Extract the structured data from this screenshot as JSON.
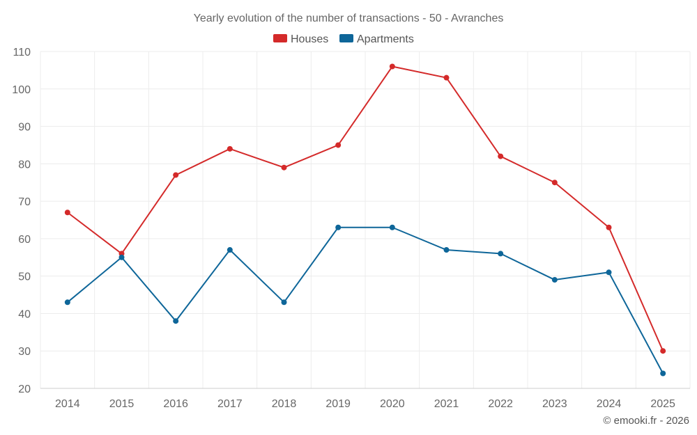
{
  "chart_data": {
    "type": "line",
    "title": "Yearly evolution of the number of transactions - 50 - Avranches",
    "categories": [
      "2014",
      "2015",
      "2016",
      "2017",
      "2018",
      "2019",
      "2020",
      "2021",
      "2022",
      "2023",
      "2024",
      "2025"
    ],
    "series": [
      {
        "name": "Houses",
        "color": "#d42a2a",
        "values": [
          67,
          56,
          77,
          84,
          79,
          85,
          106,
          103,
          82,
          75,
          63,
          30
        ]
      },
      {
        "name": "Apartments",
        "color": "#0e6699",
        "values": [
          43,
          55,
          38,
          57,
          43,
          63,
          63,
          57,
          56,
          49,
          51,
          24
        ]
      }
    ],
    "ylim": [
      20,
      110
    ],
    "yticks": [
      20,
      30,
      40,
      50,
      60,
      70,
      80,
      90,
      100,
      110
    ],
    "legend_position": "top-center",
    "grid": true,
    "xlabel": "",
    "ylabel": ""
  },
  "credit": "© emooki.fr - 2026"
}
